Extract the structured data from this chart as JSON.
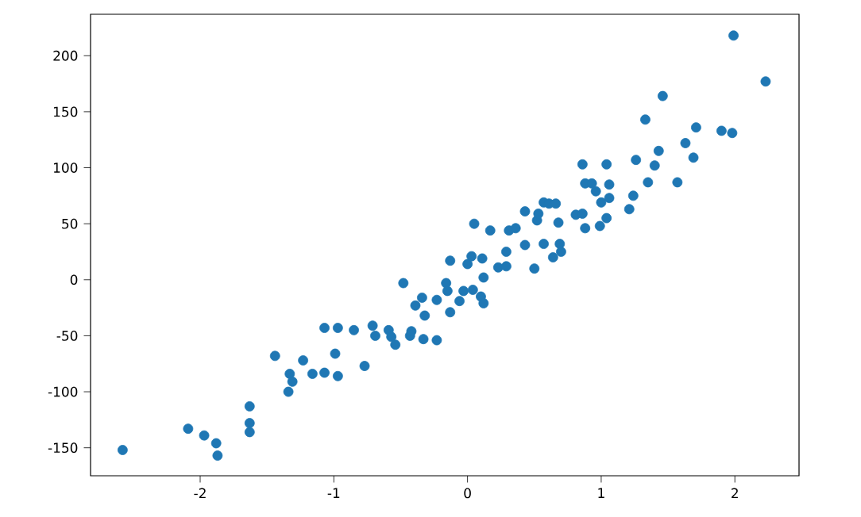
{
  "chart_data": {
    "type": "scatter",
    "x": [
      -2.58,
      -2.09,
      -1.97,
      -1.88,
      -1.87,
      -1.63,
      -1.63,
      -1.63,
      -1.44,
      -1.33,
      -1.31,
      -1.34,
      -1.23,
      -1.16,
      -1.07,
      -1.07,
      -0.97,
      -0.99,
      -0.97,
      -0.85,
      -0.77,
      -0.71,
      -0.69,
      -0.59,
      -0.57,
      -0.54,
      -0.48,
      -0.43,
      -0.42,
      -0.39,
      -0.34,
      -0.32,
      -0.33,
      -0.23,
      -0.23,
      -0.16,
      -0.15,
      -0.13,
      -0.13,
      -0.06,
      -0.03,
      0.0,
      0.03,
      0.05,
      0.04,
      0.1,
      0.12,
      0.11,
      0.12,
      0.17,
      0.23,
      0.29,
      0.29,
      0.31,
      0.36,
      0.43,
      0.43,
      0.5,
      0.52,
      0.53,
      0.57,
      0.57,
      0.61,
      0.66,
      0.64,
      0.68,
      0.69,
      0.7,
      0.81,
      0.86,
      0.86,
      0.88,
      0.88,
      0.93,
      0.96,
      0.99,
      1.0,
      1.04,
      1.04,
      1.06,
      1.06,
      1.21,
      1.24,
      1.26,
      1.33,
      1.35,
      1.4,
      1.43,
      1.46,
      1.57,
      1.63,
      1.69,
      1.71,
      1.9,
      1.98,
      1.99,
      2.23
    ],
    "values": [
      -152,
      -133,
      -139,
      -146,
      -157,
      -113,
      -128,
      -136,
      -68,
      -84,
      -91,
      -100,
      -72,
      -84,
      -83,
      -43,
      -43,
      -66,
      -86,
      -45,
      -77,
      -41,
      -50,
      -45,
      -51,
      -58,
      -3,
      -50,
      -46,
      -23,
      -16,
      -32,
      -53,
      -54,
      -18,
      -3,
      -10,
      -29,
      17,
      -19,
      -10,
      14,
      21,
      50,
      -9,
      -15,
      -21,
      19,
      2,
      44,
      11,
      25,
      12,
      44,
      46,
      31,
      61,
      10,
      53,
      59,
      32,
      69,
      68,
      68,
      20,
      51,
      32,
      25,
      58,
      59,
      103,
      86,
      46,
      86,
      79,
      48,
      69,
      55,
      103,
      85,
      73,
      63,
      75,
      107,
      143,
      87,
      102,
      115,
      164,
      87,
      122,
      109,
      136,
      133,
      131,
      218,
      177
    ],
    "color": "#1f77b4",
    "marker": "circle",
    "xlim": [
      -2.82,
      2.48
    ],
    "ylim": [
      -175,
      237
    ],
    "xticks": [
      -2,
      -1,
      0,
      1,
      2
    ],
    "yticks": [
      -150,
      -100,
      -50,
      0,
      50,
      100,
      150,
      200
    ]
  }
}
